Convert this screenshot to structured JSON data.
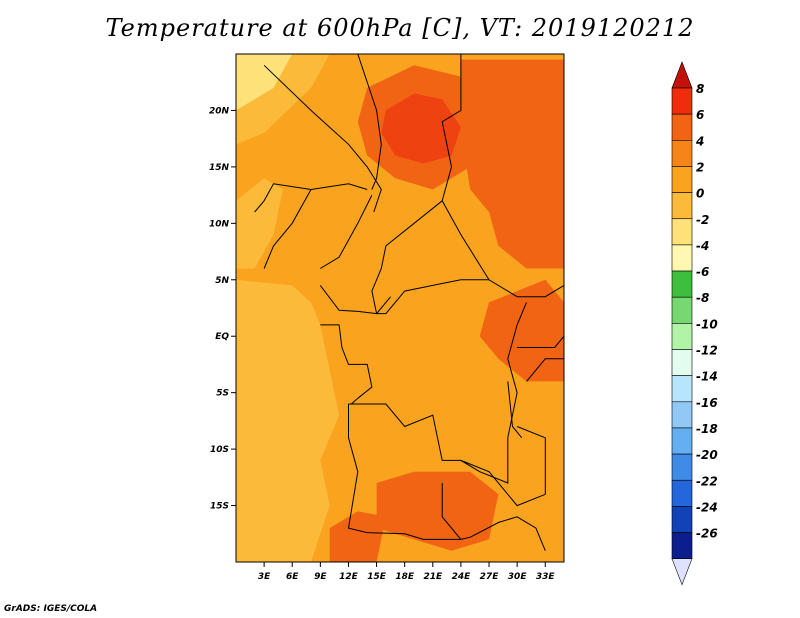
{
  "title": "Temperature at 600hPa [C], VT: 2019120212",
  "credit": "GrADS: IGES/COLA",
  "map": {
    "lon_range": [
      0,
      35
    ],
    "lat_range": [
      -20,
      25
    ],
    "x_ticks": [
      {
        "lon": 3,
        "label": "3E"
      },
      {
        "lon": 6,
        "label": "6E"
      },
      {
        "lon": 9,
        "label": "9E"
      },
      {
        "lon": 12,
        "label": "12E"
      },
      {
        "lon": 15,
        "label": "15E"
      },
      {
        "lon": 18,
        "label": "18E"
      },
      {
        "lon": 21,
        "label": "21E"
      },
      {
        "lon": 24,
        "label": "24E"
      },
      {
        "lon": 27,
        "label": "27E"
      },
      {
        "lon": 30,
        "label": "30E"
      },
      {
        "lon": 33,
        "label": "33E"
      }
    ],
    "y_ticks": [
      {
        "lat": 20,
        "label": "20N"
      },
      {
        "lat": 15,
        "label": "15N"
      },
      {
        "lat": 10,
        "label": "10N"
      },
      {
        "lat": 5,
        "label": "5N"
      },
      {
        "lat": 0,
        "label": "EQ"
      },
      {
        "lat": -5,
        "label": "5S"
      },
      {
        "lat": -10,
        "label": "10S"
      },
      {
        "lat": -15,
        "label": "15S"
      }
    ],
    "base_color": "#f9a31f",
    "regions": [
      {
        "name": "saharan-warm-core",
        "color": "#f06414",
        "points": [
          [
            14,
            22
          ],
          [
            19,
            24
          ],
          [
            24,
            23
          ],
          [
            26,
            19
          ],
          [
            25,
            15
          ],
          [
            21,
            13
          ],
          [
            17,
            14
          ],
          [
            14,
            16
          ],
          [
            13,
            19
          ]
        ]
      },
      {
        "name": "saharan-hot-center",
        "color": "#ee4210",
        "points": [
          [
            16,
            20
          ],
          [
            19,
            21.5
          ],
          [
            22,
            21
          ],
          [
            24,
            18.5
          ],
          [
            23,
            16
          ],
          [
            20,
            15.3
          ],
          [
            17,
            16
          ],
          [
            15.5,
            18
          ]
        ]
      },
      {
        "name": "east-sudan-warm",
        "color": "#f06414",
        "points": [
          [
            24,
            24.5
          ],
          [
            35,
            24.5
          ],
          [
            35,
            6
          ],
          [
            31,
            6
          ],
          [
            28,
            8
          ],
          [
            27,
            11
          ],
          [
            25,
            13
          ],
          [
            24,
            18
          ]
        ]
      },
      {
        "name": "great-lakes-warm",
        "color": "#f06414",
        "points": [
          [
            27,
            3
          ],
          [
            33,
            5
          ],
          [
            35,
            3
          ],
          [
            35,
            -4
          ],
          [
            31,
            -4
          ],
          [
            28,
            -2
          ],
          [
            26,
            0
          ]
        ]
      },
      {
        "name": "zambia-warm",
        "color": "#f06414",
        "points": [
          [
            15,
            -13
          ],
          [
            19,
            -12
          ],
          [
            25,
            -12
          ],
          [
            28,
            -14
          ],
          [
            27,
            -18
          ],
          [
            23,
            -19
          ],
          [
            19,
            -18
          ],
          [
            15,
            -17
          ]
        ]
      },
      {
        "name": "south-west-warm",
        "color": "#f06414",
        "points": [
          [
            10,
            -17
          ],
          [
            13,
            -15.5
          ],
          [
            16,
            -16
          ],
          [
            15,
            -20
          ],
          [
            10,
            -20
          ]
        ]
      },
      {
        "name": "west-africa-cool",
        "color": "#fbba3a",
        "points": [
          [
            0,
            5
          ],
          [
            6,
            4.5
          ],
          [
            8,
            3
          ],
          [
            9,
            1
          ],
          [
            10,
            -3
          ],
          [
            11,
            -7
          ],
          [
            9,
            -11
          ],
          [
            10,
            -15
          ],
          [
            8,
            -20
          ],
          [
            0,
            -20
          ]
        ]
      },
      {
        "name": "west-coast-cool",
        "color": "#fbba3a",
        "points": [
          [
            0,
            12
          ],
          [
            3,
            14
          ],
          [
            5,
            13
          ],
          [
            4,
            9
          ],
          [
            2,
            6
          ],
          [
            0,
            6
          ]
        ]
      },
      {
        "name": "nw-cool",
        "color": "#fbba3a",
        "points": [
          [
            0,
            25
          ],
          [
            10,
            25
          ],
          [
            8,
            22
          ],
          [
            3,
            18
          ],
          [
            0,
            17
          ]
        ]
      },
      {
        "name": "nw-lightest",
        "color": "#fde27a",
        "points": [
          [
            0,
            25
          ],
          [
            6,
            25
          ],
          [
            4,
            22
          ],
          [
            0,
            20
          ]
        ]
      }
    ]
  },
  "colorbar": {
    "levels": [
      "8",
      "6",
      "4",
      "2",
      "0",
      "-2",
      "-4",
      "-6",
      "-8",
      "-10",
      "-12",
      "-14",
      "-16",
      "-18",
      "-20",
      "-22",
      "-24",
      "-26"
    ],
    "colors": [
      "#ee2e0b",
      "#f06414",
      "#f58518",
      "#f9a31f",
      "#fbba3a",
      "#fde27a",
      "#fff8b2",
      "#3dbe3c",
      "#75d870",
      "#b1f4a8",
      "#e2fdf0",
      "#b7e5fb",
      "#90c9f5",
      "#64aef2",
      "#3f8ce6",
      "#2367db",
      "#1243b6",
      "#0b1e8b"
    ],
    "top_color": "#c4100a",
    "bottom_color": "#dfe2ff"
  }
}
